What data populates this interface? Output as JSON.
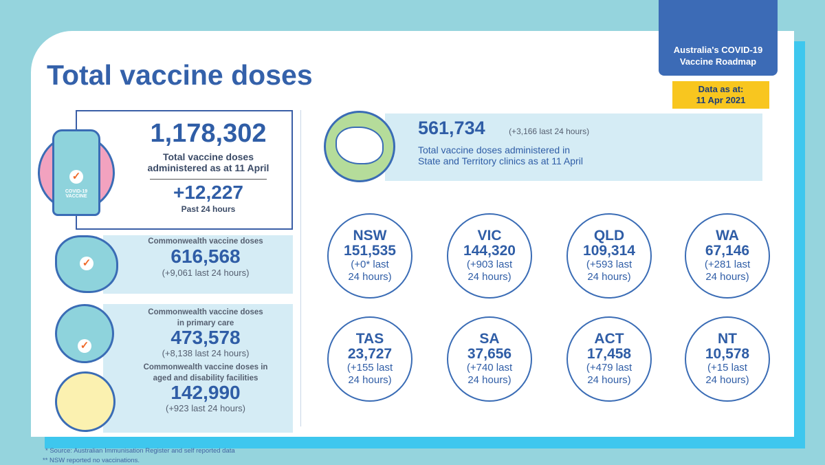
{
  "header": {
    "title": "Total vaccine doses",
    "roadmap": "Australia's COVID-19 Vaccine Roadmap",
    "date_label": "Data as at:",
    "date": "11 Apr 2021"
  },
  "total": {
    "value": "1,178,302",
    "label1": "Total vaccine doses",
    "label2": "administered  as at 11 April",
    "change": "+12,227",
    "change_label": "Past 24 hours",
    "vial_text1": "COVID-19",
    "vial_text2": "VACCINE"
  },
  "commonwealth": [
    {
      "label1": "Commonwealth vaccine doses",
      "label2": "",
      "value": "616,568",
      "change": "(+9,061 last 24 hours)"
    },
    {
      "label1": "Commonwealth vaccine doses",
      "label2": "in primary care",
      "value": "473,578",
      "change": "(+8,138 last 24 hours)"
    },
    {
      "label1": "Commonwealth vaccine doses  in",
      "label2": "aged and disability facilities",
      "value": "142,990",
      "change": "(+923 last 24 hours)"
    }
  ],
  "state_total": {
    "value": "561,734",
    "change": "(+3,166 last 24 hours)",
    "label1": "Total vaccine doses administered in",
    "label2": "State and Territory clinics as at 11 April"
  },
  "states": [
    {
      "name": "NSW",
      "value": "151,535",
      "c1": "(+0* last",
      "c2": "24 hours)"
    },
    {
      "name": "VIC",
      "value": "144,320",
      "c1": "(+903 last",
      "c2": "24 hours)"
    },
    {
      "name": "QLD",
      "value": "109,314",
      "c1": "(+593 last",
      "c2": "24 hours)"
    },
    {
      "name": "WA",
      "value": "67,146",
      "c1": "(+281 last",
      "c2": "24 hours)"
    },
    {
      "name": "TAS",
      "value": "23,727",
      "c1": "(+155 last",
      "c2": "24 hours)"
    },
    {
      "name": "SA",
      "value": "37,656",
      "c1": "(+740 last",
      "c2": "24 hours)"
    },
    {
      "name": "ACT",
      "value": "17,458",
      "c1": "(+479 last",
      "c2": "24 hours)"
    },
    {
      "name": "NT",
      "value": "10,578",
      "c1": "(+15 last",
      "c2": "24 hours)"
    }
  ],
  "footnotes": [
    "* Source: Australian Immunisation Register and self reported data",
    "** NSW reported no vaccinations."
  ],
  "colors": {
    "primary": "#2f5da6",
    "accent": "#3ec7ee",
    "yellow": "#f8c61f",
    "panel": "#d5ecf5"
  }
}
